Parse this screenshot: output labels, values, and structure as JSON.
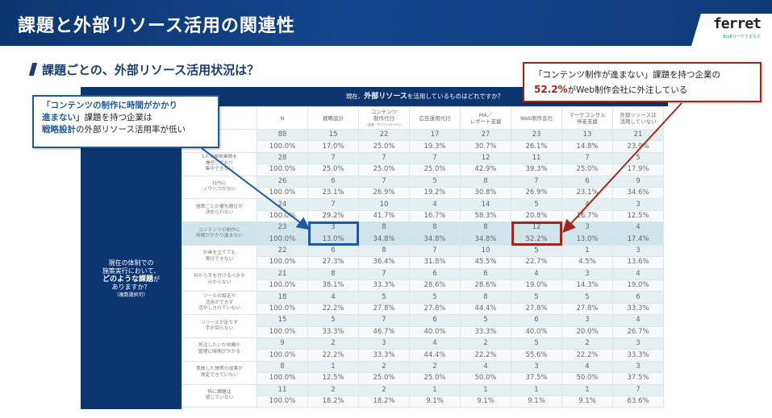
{
  "header": {
    "title": "課題と外部リソース活用の関連性",
    "logo": "ferret",
    "logo_tagline": "BtoBマーケするなら"
  },
  "subtitle": "課題ごとの、外部リソース活用状況は？",
  "question_top": {
    "prefix": "現在、",
    "bold": "外部リソース",
    "suffix": "を活用しているものはどれですか？"
  },
  "question_left": {
    "line1": "現在の体制での",
    "line2": "施策実行において、",
    "bold": "どのような課題",
    "bold_suffix": "が",
    "line4": "ありますか？",
    "note": "（複数選択可）"
  },
  "columns": [
    {
      "label": "N"
    },
    {
      "label": "戦略設計"
    },
    {
      "label": "コンテンツ\n制作代行",
      "sub": "（記事・ホワイトペーパー）"
    },
    {
      "label": "広告運用代行"
    },
    {
      "label": "MA／\nレポート支援"
    },
    {
      "label": "Web制作会社"
    },
    {
      "label": "マーケコンサル\n伴走支援"
    },
    {
      "label": "外部リソースは\n活用していない"
    }
  ],
  "rows": [
    {
      "label": "",
      "counts": [
        "88",
        "15",
        "22",
        "17",
        "27",
        "23",
        "13",
        "21"
      ],
      "pcts": [
        "100.0%",
        "17.0%",
        "25.0%",
        "19.3%",
        "30.7%",
        "26.1%",
        "14.8%",
        "23.9%"
      ]
    },
    {
      "label": "1人で複数業務を\n兼任しており\n集中できない",
      "counts": [
        "28",
        "7",
        "7",
        "7",
        "12",
        "11",
        "7",
        "5"
      ],
      "pcts": [
        "100.0%",
        "25.0%",
        "25.0%",
        "25.0%",
        "42.9%",
        "39.3%",
        "25.0%",
        "17.9%"
      ]
    },
    {
      "label": "社内に\nノウハウがない",
      "counts": [
        "26",
        "6",
        "7",
        "5",
        "8",
        "7",
        "6",
        "9"
      ],
      "pcts": [
        "100.0%",
        "23.1%",
        "26.9%",
        "19.2%",
        "30.8%",
        "26.9%",
        "23.1%",
        "34.6%"
      ]
    },
    {
      "label": "施策ごとの優先順位が\n決められない",
      "counts": [
        "24",
        "7",
        "10",
        "4",
        "14",
        "5",
        "4",
        "3"
      ],
      "pcts": [
        "100.0%",
        "29.2%",
        "41.7%",
        "16.7%",
        "58.3%",
        "20.8%",
        "16.7%",
        "12.5%"
      ]
    },
    {
      "label": "コンテンツの制作に\n時間がかかり進まない",
      "highlight": true,
      "counts": [
        "23",
        "3",
        "8",
        "8",
        "8",
        "12",
        "3",
        "4"
      ],
      "pcts": [
        "100.0%",
        "13.0%",
        "34.8%",
        "34.8%",
        "34.8%",
        "52.2%",
        "13.0%",
        "17.4%"
      ]
    },
    {
      "label": "計画を立てても\n実行できない",
      "counts": [
        "22",
        "6",
        "8",
        "7",
        "10",
        "5",
        "1",
        "3"
      ],
      "pcts": [
        "100.0%",
        "27.3%",
        "36.4%",
        "31.8%",
        "45.5%",
        "22.7%",
        "4.5%",
        "13.6%"
      ]
    },
    {
      "label": "何から手を付けるべきか\n分からない",
      "counts": [
        "21",
        "8",
        "7",
        "6",
        "6",
        "4",
        "3",
        "4"
      ],
      "pcts": [
        "100.0%",
        "38.1%",
        "33.3%",
        "28.6%",
        "28.6%",
        "19.0%",
        "14.3%",
        "19.0%"
      ]
    },
    {
      "label": "ツールの設定や\n活用ができず\n活かしきれていない",
      "counts": [
        "18",
        "4",
        "5",
        "5",
        "8",
        "5",
        "5",
        "6"
      ],
      "pcts": [
        "100.0%",
        "22.2%",
        "27.8%",
        "27.8%",
        "44.4%",
        "27.8%",
        "27.8%",
        "33.3%"
      ]
    },
    {
      "label": "リソースが足りず\n手が回らない",
      "counts": [
        "15",
        "5",
        "7",
        "6",
        "5",
        "6",
        "3",
        "4"
      ],
      "pcts": [
        "100.0%",
        "33.3%",
        "46.7%",
        "40.0%",
        "33.3%",
        "40.0%",
        "20.0%",
        "26.7%"
      ]
    },
    {
      "label": "外注したいが依頼や\n管理に時間がかかる",
      "counts": [
        "9",
        "2",
        "3",
        "4",
        "2",
        "5",
        "2",
        "3"
      ],
      "pcts": [
        "100.0%",
        "22.2%",
        "33.3%",
        "44.4%",
        "22.2%",
        "55.6%",
        "22.2%",
        "33.3%"
      ]
    },
    {
      "label": "実施した施策の成果が\n測定できていない",
      "counts": [
        "8",
        "1",
        "2",
        "2",
        "4",
        "3",
        "4",
        "3"
      ],
      "pcts": [
        "100.0%",
        "12.5%",
        "25.0%",
        "25.0%",
        "50.0%",
        "37.5%",
        "50.0%",
        "37.5%"
      ]
    },
    {
      "label": "特に課題は\n感じていない",
      "counts": [
        "11",
        "2",
        "2",
        "1",
        "1",
        "1",
        "1",
        "7"
      ],
      "pcts": [
        "100.0%",
        "18.2%",
        "18.2%",
        "9.1%",
        "9.1%",
        "9.1%",
        "9.1%",
        "63.6%"
      ]
    }
  ],
  "callout_left": {
    "line1": "「コンテンツの制作に時間がかかり",
    "line2_bold": "進まない」",
    "line2": "課題を持つ企業は",
    "line3_bold": "戦略設計",
    "line3": "の外部リソース活用率が低い"
  },
  "callout_right": {
    "line1": "「コンテンツ制作が進まない」課題を持つ企業の",
    "pct": "52.2%",
    "line2": "がWeb制作会社に外注している"
  },
  "colors": {
    "navy": "#0d3570",
    "blue_accent": "#1f5b9a",
    "red_accent": "#a3261c"
  }
}
